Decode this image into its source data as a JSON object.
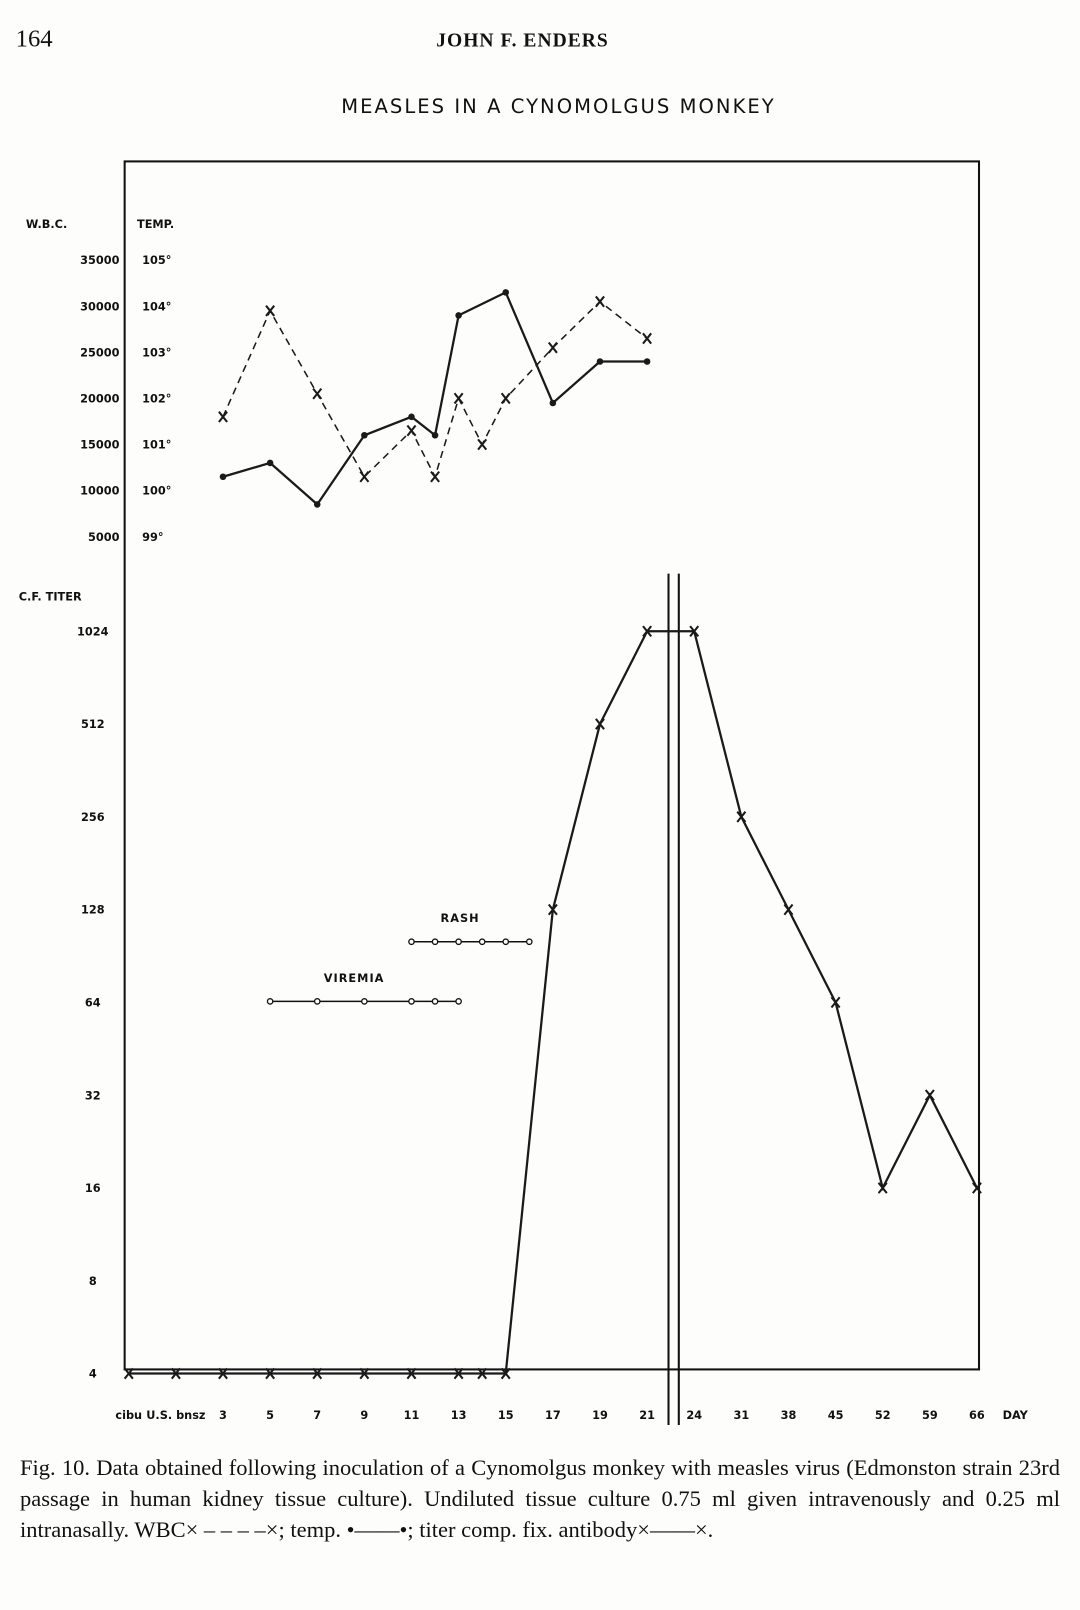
{
  "page_number": "164",
  "running_head": "JOHN F. ENDERS",
  "chart_data": [
    {
      "type": "line",
      "title": "MEASLES IN A CYNOMOLGUS MONKEY",
      "ylabel": "W.B.C.",
      "y2label": "TEMP.",
      "ylim": [
        5000,
        35000
      ],
      "yticks": [
        5000,
        10000,
        15000,
        20000,
        25000,
        30000,
        35000
      ],
      "y2lim": [
        99,
        105
      ],
      "y2ticks": [
        {
          "value": 99,
          "label": "99°"
        },
        {
          "value": 100,
          "label": "100°"
        },
        {
          "value": 101,
          "label": "101°"
        },
        {
          "value": 102,
          "label": "102°"
        },
        {
          "value": 103,
          "label": "103°"
        },
        {
          "value": 104,
          "label": "104°"
        },
        {
          "value": 105,
          "label": "105°"
        }
      ],
      "series": [
        {
          "color": "#1a1a1a",
          "style": "dashed",
          "marker": "x",
          "x": [
            3,
            5,
            7,
            9,
            11,
            12,
            13,
            14,
            15,
            17,
            19,
            21
          ],
          "values": [
            18000,
            29500,
            20500,
            11500,
            16500,
            11500,
            20000,
            15000,
            20000,
            25500,
            30500,
            26500
          ]
        },
        {
          "color": "#1a1a1a",
          "style": "solid",
          "marker": "dot",
          "axis": "y2",
          "x": [
            3,
            5,
            7,
            9,
            11,
            12,
            13,
            15,
            17,
            19,
            21
          ],
          "values": [
            100.3,
            100.6,
            99.7,
            101.2,
            101.6,
            101.2,
            103.8,
            104.3,
            101.9,
            102.8,
            102.8
          ]
        }
      ]
    },
    {
      "type": "line",
      "ylabel": "C.F. TITER",
      "yscale": "log2",
      "ylim": [
        4,
        1024
      ],
      "yticks": [
        4,
        8,
        16,
        32,
        64,
        128,
        256,
        512,
        1024
      ],
      "xlabel": "DAY",
      "xticks": [
        {
          "value": -1,
          "label": "cibu"
        },
        {
          "value": 1,
          "label": "U.S. bnsz"
        },
        3,
        5,
        7,
        9,
        11,
        13,
        15,
        17,
        19,
        21,
        24,
        31,
        38,
        45,
        52,
        59,
        66
      ],
      "series": [
        {
          "color": "#1a1a1a",
          "style": "solid",
          "marker": "x",
          "x": [
            -1,
            1,
            3,
            5,
            7,
            9,
            11,
            13,
            14,
            15,
            17,
            19,
            21,
            24,
            31,
            38,
            45,
            52,
            59,
            66
          ],
          "values": [
            4,
            4,
            4,
            4,
            4,
            4,
            4,
            4,
            4,
            4,
            128,
            512,
            1024,
            1024,
            256,
            128,
            64,
            16,
            32,
            16
          ]
        }
      ],
      "annotations": [
        {
          "text": "VIREMIA",
          "x": [
            5,
            7,
            9,
            11,
            12,
            13
          ]
        },
        {
          "text": "RASH",
          "x": [
            11,
            12,
            13,
            14,
            15,
            16
          ]
        }
      ]
    }
  ],
  "caption": "Fig. 10. Data obtained following inoculation of a Cynomolgus monkey with measles virus (Edmonston strain 23rd passage in human kidney tissue culture). Undiluted tissue culture 0.75 ml given intravenously and 0.25 ml intranasally. WBC× – – – –×; temp. •——•; titer comp. fix. antibody×——×."
}
